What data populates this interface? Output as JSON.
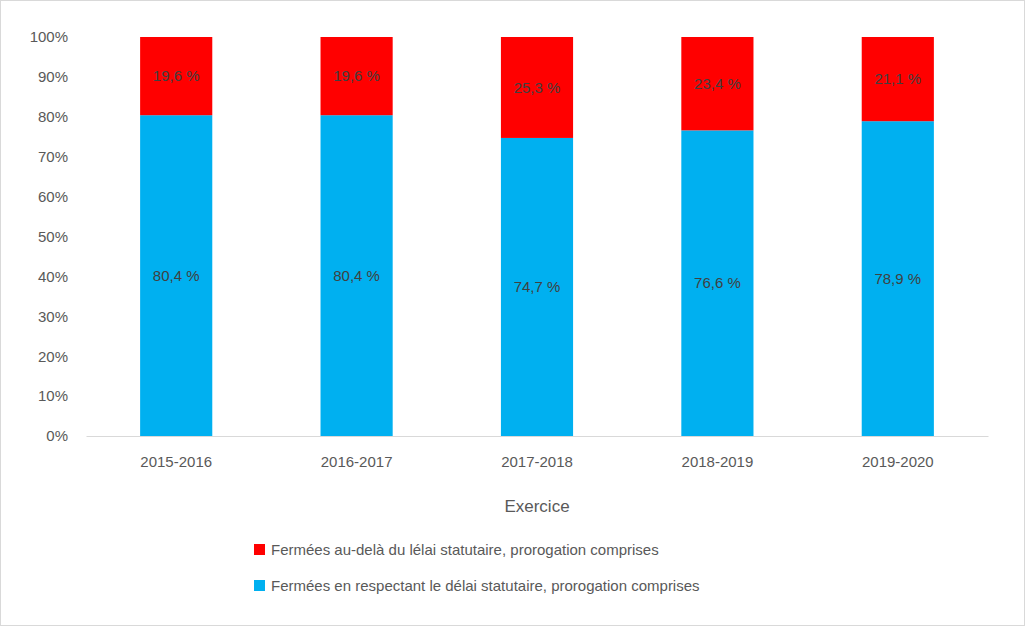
{
  "chart_data": {
    "type": "bar",
    "stacked": true,
    "data_labels": true,
    "grid": false,
    "legend": "bottom",
    "x_label": "Exercice",
    "categories": [
      "2015-2016",
      "2016-2017",
      "2017-2018",
      "2018-2019",
      "2019-2020"
    ],
    "ylim": [
      0,
      100
    ],
    "yticks": [
      {
        "value": 0,
        "label": "0%"
      },
      {
        "value": 10,
        "label": "10%"
      },
      {
        "value": 20,
        "label": "20%"
      },
      {
        "value": 30,
        "label": "30%"
      },
      {
        "value": 40,
        "label": "40%"
      },
      {
        "value": 50,
        "label": "50%"
      },
      {
        "value": 60,
        "label": "60%"
      },
      {
        "value": 70,
        "label": "70%"
      },
      {
        "value": 80,
        "label": "80%"
      },
      {
        "value": 90,
        "label": "90%"
      },
      {
        "value": 100,
        "label": "100%"
      }
    ],
    "series": [
      {
        "name": "Fermées en respectant le délai statutaire, prorogation comprises",
        "color": "#00b0f0",
        "values": [
          80.4,
          80.4,
          74.7,
          76.6,
          78.9
        ],
        "value_labels": [
          "80,4 %",
          "80,4 %",
          "74,7 %",
          "76,6 %",
          "78,9 %"
        ]
      },
      {
        "name": "Fermées au-delà du lélai statutaire, prorogation comprises",
        "color": "#ff0000",
        "values": [
          19.6,
          19.6,
          25.3,
          23.4,
          21.1
        ],
        "value_labels": [
          "19,6 %",
          "19,6 %",
          "25,3 %",
          "23,4 %",
          "21,1 %"
        ]
      }
    ]
  }
}
